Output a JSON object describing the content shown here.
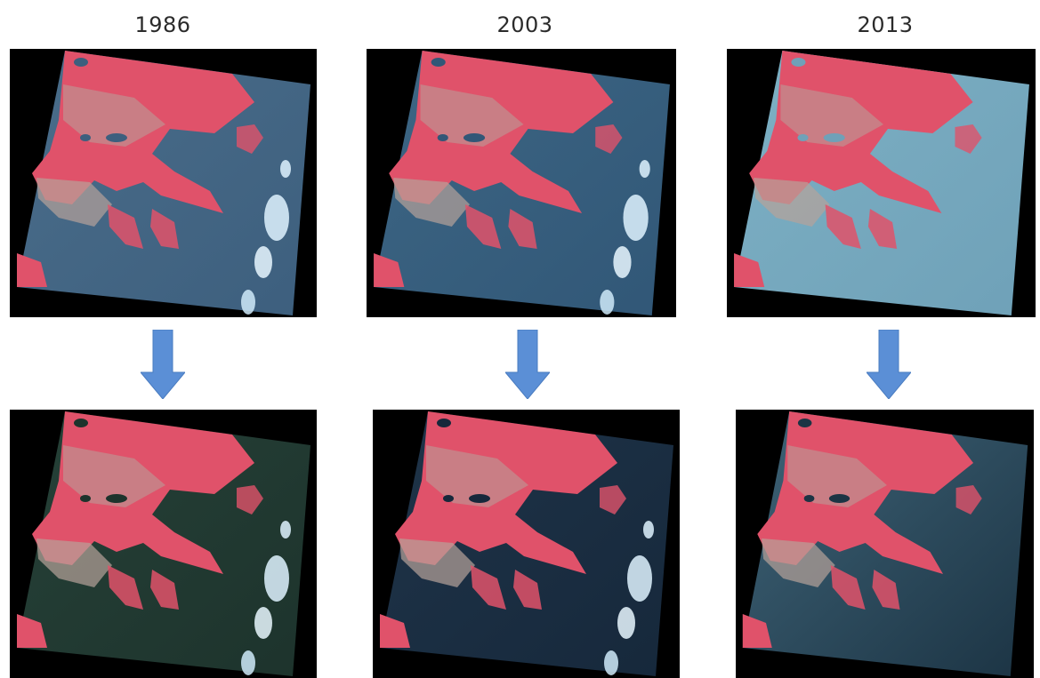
{
  "years": [
    "1986",
    "2003",
    "2013"
  ],
  "colors": {
    "arrow": "#5b8fd6",
    "arrow_edge": "#4a7cc0",
    "land": "#e0526a",
    "land_light": "#b7a39a",
    "frame_bg": "#000000"
  },
  "panels": [
    {
      "year": "1986",
      "variant": "original",
      "water": "#3d5f7e",
      "water2": "#4a6d8a",
      "cloud": true
    },
    {
      "year": "2003",
      "variant": "original",
      "water": "#315777",
      "water2": "#3d6684",
      "cloud": true
    },
    {
      "year": "2013",
      "variant": "original",
      "water": "#6fa1b8",
      "water2": "#7db0c4",
      "cloud": false
    },
    {
      "year": "1986",
      "variant": "corrected",
      "water": "#1d332c",
      "water2": "#264138",
      "cloud": true
    },
    {
      "year": "2003",
      "variant": "corrected",
      "water": "#16283b",
      "water2": "#1f3449",
      "cloud": true
    },
    {
      "year": "2013",
      "variant": "corrected",
      "water": "#1c3444",
      "water2": "#3f6478",
      "cloud": false
    }
  ]
}
